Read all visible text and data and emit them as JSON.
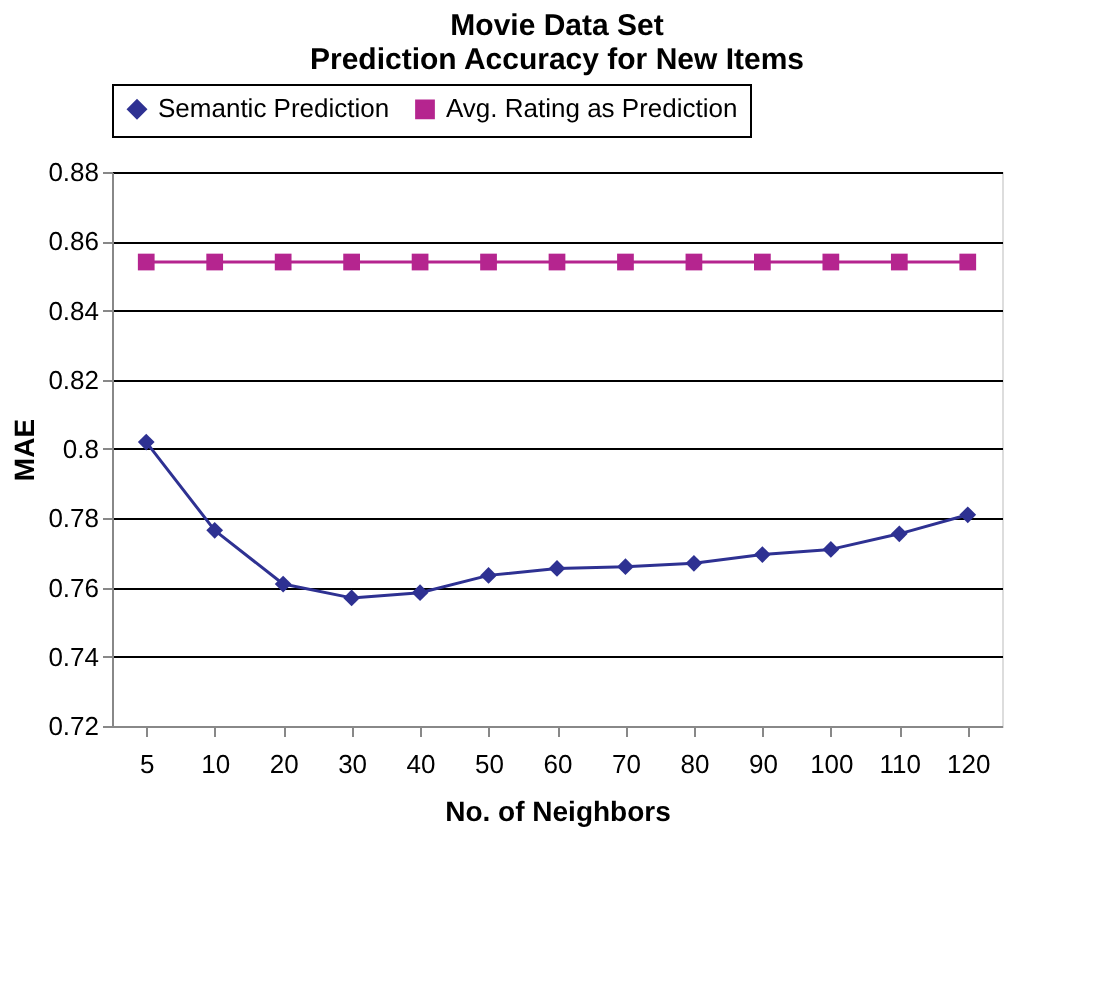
{
  "chart_data": {
    "type": "line",
    "title": [
      "Movie Data Set",
      "Prediction Accuracy for New Items"
    ],
    "xlabel": "No. of Neighbors",
    "ylabel": "MAE",
    "categories": [
      "5",
      "10",
      "20",
      "30",
      "40",
      "50",
      "60",
      "70",
      "80",
      "90",
      "100",
      "110",
      "120"
    ],
    "series": [
      {
        "name": "Semantic Prediction",
        "color": "#2e3192",
        "marker": "diamond",
        "values": [
          0.802,
          0.7765,
          0.761,
          0.757,
          0.7585,
          0.7635,
          0.7655,
          0.766,
          0.767,
          0.7695,
          0.771,
          0.7755,
          0.781
        ]
      },
      {
        "name": "Avg. Rating as Prediction",
        "color": "#b5258f",
        "marker": "square",
        "values": [
          0.854,
          0.854,
          0.854,
          0.854,
          0.854,
          0.854,
          0.854,
          0.854,
          0.854,
          0.854,
          0.854,
          0.854,
          0.854
        ]
      }
    ],
    "ylim": [
      0.72,
      0.88
    ],
    "yticks": [
      0.72,
      0.74,
      0.76,
      0.78,
      0.8,
      0.82,
      0.84,
      0.86,
      0.88
    ],
    "grid": "y",
    "legend": "top"
  }
}
